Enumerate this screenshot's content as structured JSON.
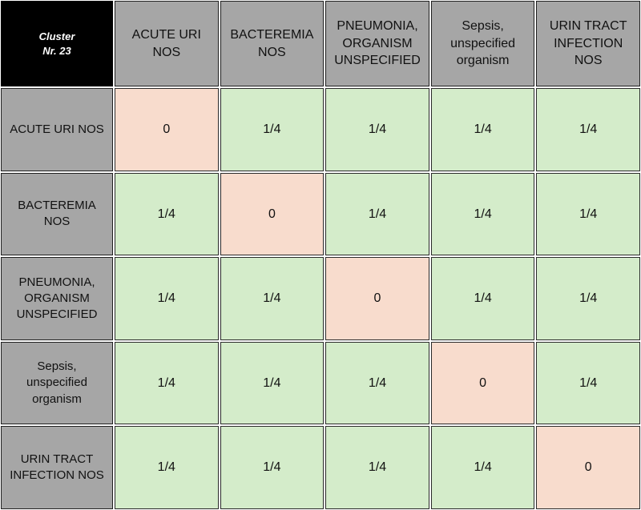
{
  "corner": {
    "line1": "Cluster",
    "line2": "Nr. 23"
  },
  "columns": [
    "ACUTE URI NOS",
    "BACTEREMIA NOS",
    "PNEUMONIA, ORGANISM UNSPECIFIED",
    "Sepsis, unspecified organism",
    "URIN TRACT INFECTION NOS"
  ],
  "rows": [
    {
      "label": "ACUTE URI NOS",
      "values": [
        "0",
        "1/4",
        "1/4",
        "1/4",
        "1/4"
      ]
    },
    {
      "label": "BACTEREMIA NOS",
      "values": [
        "1/4",
        "0",
        "1/4",
        "1/4",
        "1/4"
      ]
    },
    {
      "label": "PNEUMONIA, ORGANISM UNSPECIFIED",
      "values": [
        "1/4",
        "1/4",
        "0",
        "1/4",
        "1/4"
      ]
    },
    {
      "label": "Sepsis, unspecified organism",
      "values": [
        "1/4",
        "1/4",
        "1/4",
        "0",
        "1/4"
      ]
    },
    {
      "label": "URIN TRACT INFECTION NOS",
      "values": [
        "1/4",
        "1/4",
        "1/4",
        "1/4",
        "0"
      ]
    }
  ],
  "colors": {
    "diagonal": "#f8dccd",
    "off_diagonal": "#d4ecca",
    "header": "#a6a6a6",
    "corner": "#000000"
  }
}
